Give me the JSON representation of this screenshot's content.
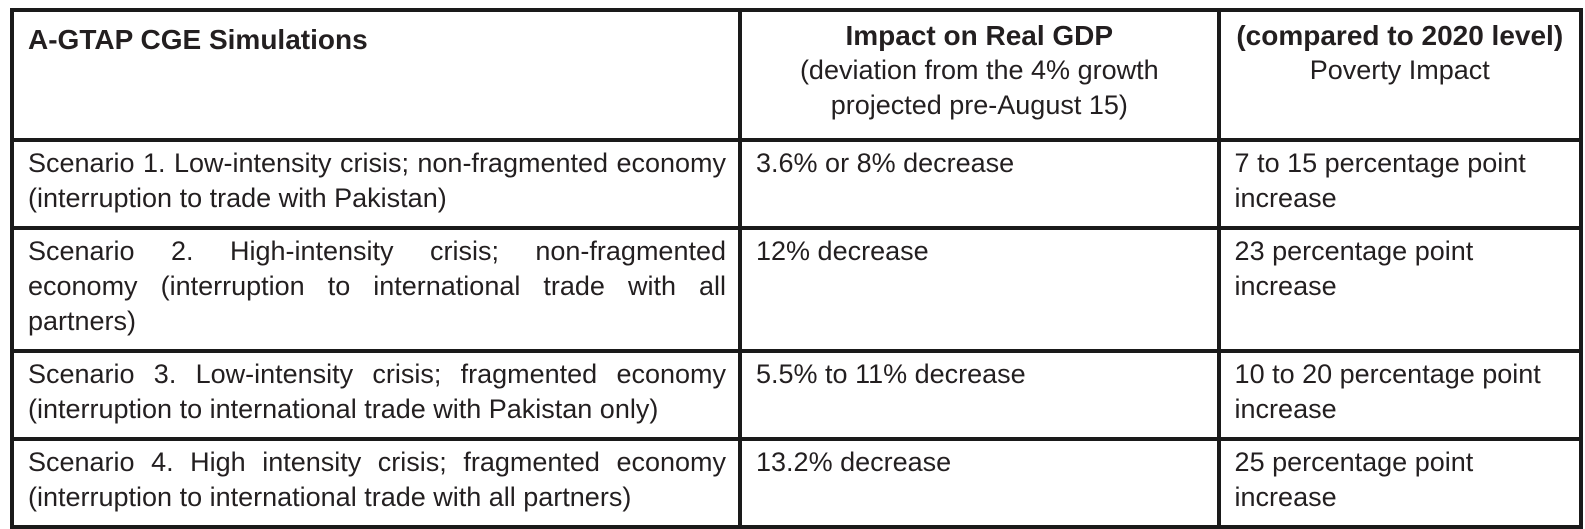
{
  "page": {
    "background_color": "#ffffff",
    "text_color": "#231f20",
    "border_color": "#1a1a1a"
  },
  "table": {
    "header": {
      "simulations": "A-GTAP CGE Simulations",
      "gdp": {
        "title": "Impact on Real GDP",
        "subtitle": "(deviation from the 4% growth projected pre-August 15)"
      },
      "poverty": {
        "title": "(compared to 2020 level)",
        "subtitle": "Poverty Impact"
      }
    },
    "rows": [
      {
        "scenario": "Scenario 1. Low-intensity crisis; non-fragmented economy (interruption to trade with Pakistan)",
        "gdp_impact": "3.6% or 8% decrease",
        "poverty_impact": "7 to 15 percentage point increase"
      },
      {
        "scenario": "Scenario 2. High-intensity crisis; non-fragmented economy (interruption to international trade with all partners)",
        "gdp_impact": "12% decrease",
        "poverty_impact": "23 percentage point increase"
      },
      {
        "scenario": "Scenario 3. Low-intensity crisis; fragmented economy (interruption to international trade with Pakistan only)",
        "gdp_impact": "5.5% to 11% decrease",
        "poverty_impact": "10 to 20 percentage point increase"
      },
      {
        "scenario": "Scenario 4. High intensity crisis; fragmented economy (interruption to international trade with all partners)",
        "gdp_impact": "13.2% decrease",
        "poverty_impact": "25 percentage point increase"
      }
    ]
  }
}
